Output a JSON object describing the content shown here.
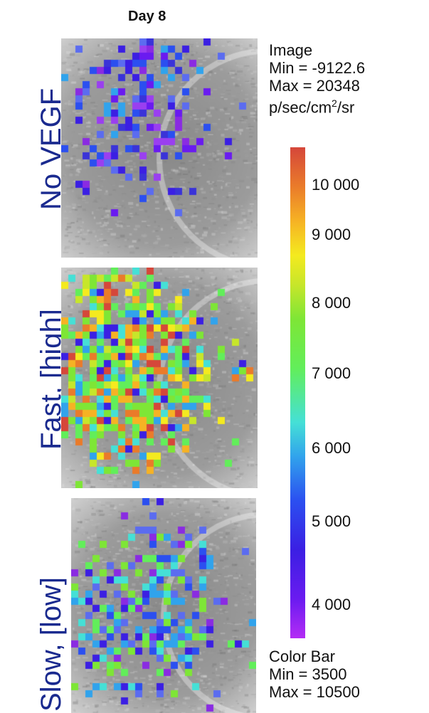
{
  "header": {
    "title": "Day 8"
  },
  "panels": [
    {
      "label": "No VEGF",
      "seed": 7,
      "density": "low"
    },
    {
      "label": "Fast, [high]",
      "seed": 19,
      "density": "high"
    },
    {
      "label": "Slow, [low]",
      "seed": 31,
      "density": "medium"
    }
  ],
  "info": {
    "line1": "Image",
    "line2": "Min = -9122.6",
    "line3": "Max = 20348",
    "line4_prefix": "p/sec/cm",
    "line4_sup": "2",
    "line4_suffix": "/sr"
  },
  "colorbar": {
    "ticks": [
      "10 000",
      "9 000",
      "8 000",
      "7 000",
      "6 000",
      "5 000",
      "4 000"
    ],
    "footer1": "Color Bar",
    "footer2": "Min = 3500",
    "footer3": "Max = 10500"
  }
}
